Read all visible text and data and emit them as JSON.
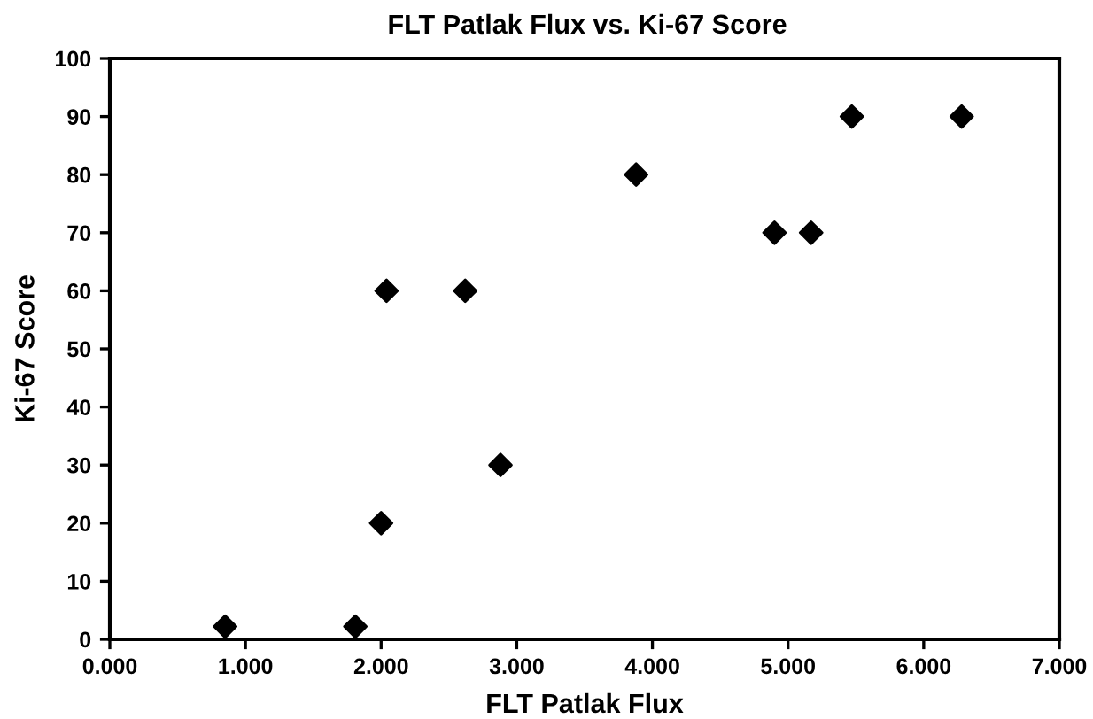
{
  "chart_data": {
    "type": "scatter",
    "title": "FLT Patlak Flux vs. Ki-67 Score",
    "xlabel": "FLT Patlak Flux",
    "ylabel": "Ki-67 Score",
    "series": [
      {
        "color": "#000000",
        "x": [
          0.85,
          1.81,
          2.0,
          2.04,
          2.62,
          2.88,
          3.88,
          4.9,
          5.17,
          5.47,
          6.28
        ],
        "values": [
          2.2,
          2.2,
          20,
          60,
          60,
          30,
          80,
          70,
          70,
          90,
          90
        ]
      }
    ],
    "xlim": [
      0,
      7
    ],
    "ylim": [
      0,
      100
    ],
    "xticks": [
      {
        "value": 0,
        "label": "0.000"
      },
      {
        "value": 1,
        "label": "1.000"
      },
      {
        "value": 2,
        "label": "2.000"
      },
      {
        "value": 3,
        "label": "3.000"
      },
      {
        "value": 4,
        "label": "4.000"
      },
      {
        "value": 5,
        "label": "5.000"
      },
      {
        "value": 6,
        "label": "6.000"
      },
      {
        "value": 7,
        "label": "7.000"
      }
    ],
    "yticks": [
      0,
      10,
      20,
      30,
      40,
      50,
      60,
      70,
      80,
      90,
      100
    ],
    "marker": "diamond",
    "grid": false,
    "legend": false
  }
}
